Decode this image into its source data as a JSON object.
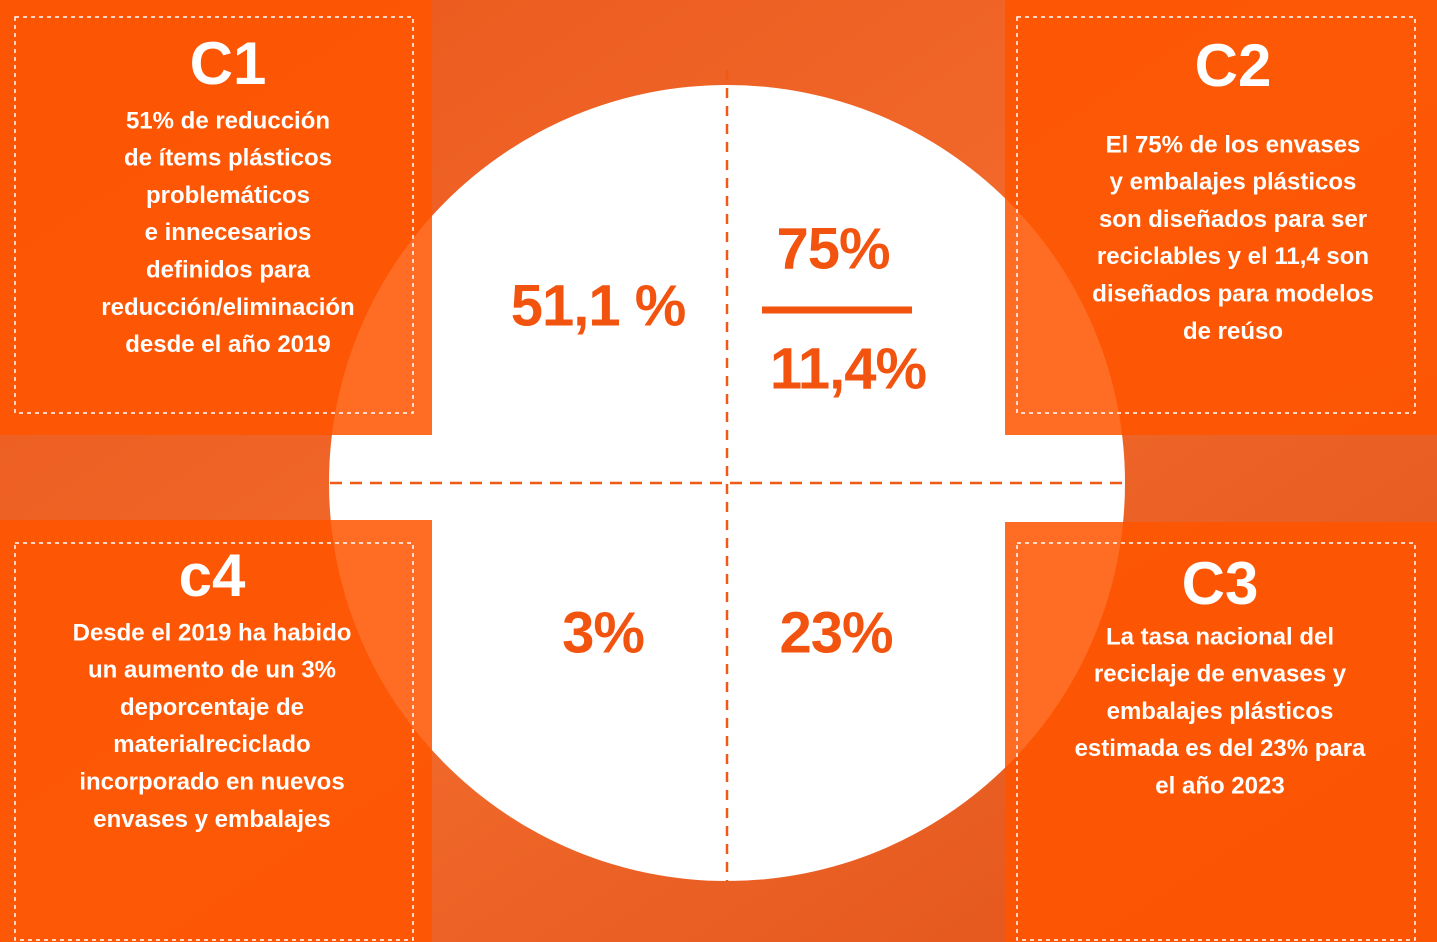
{
  "boxes": [
    {
      "title": "C1",
      "lines": [
        "51% de reducción",
        "de ítems plásticos",
        "problemáticos",
        "e innecesarios",
        "definidos para",
        "reducción/eliminación",
        "desde el año 2019"
      ]
    },
    {
      "title": "C2",
      "lines": [
        "El 75% de los envases",
        "y embalajes plásticos",
        "son diseñados para ser",
        "reciclables y el 11,4 son",
        "diseñados para modelos",
        "de reúso"
      ]
    },
    {
      "title": "C3",
      "lines": [
        "La tasa nacional del",
        "reciclaje de envases y",
        "embalajes plásticos",
        "estimada es del 23% para",
        "el año 2023"
      ]
    },
    {
      "title": "c4",
      "lines": [
        "Desde el 2019 ha habido",
        "un aumento de un 3%",
        "deporcentaje de",
        "materialreciclado",
        "incorporado en nuevos",
        "envases y embalajes"
      ]
    }
  ],
  "circle": {
    "top_left": "51,1 %",
    "top_right_upper": "75%",
    "top_right_lower": "11,4%",
    "bottom_right": "23%",
    "bottom_left": "3%"
  }
}
